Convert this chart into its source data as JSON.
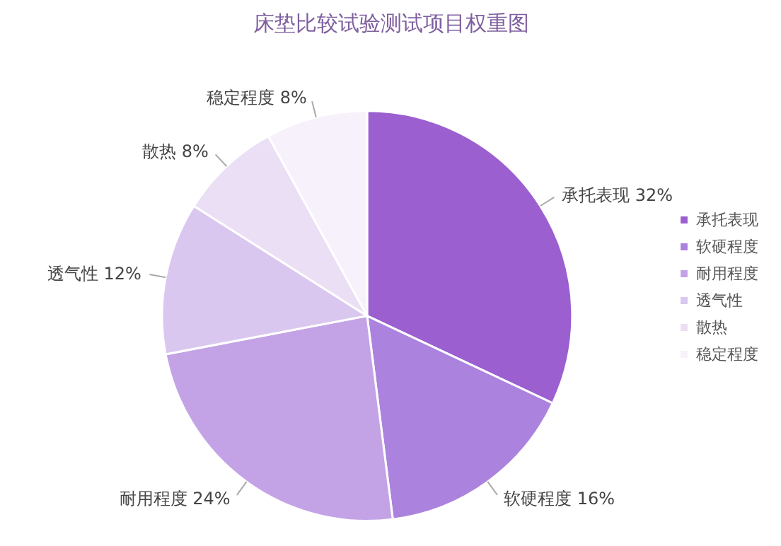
{
  "chart_data": {
    "type": "pie",
    "title": "床垫比较试验测试项目权重图",
    "categories": [
      "承托表现",
      "软硬程度",
      "耐用程度",
      "透气性",
      "散热",
      "稳定程度"
    ],
    "values": [
      32,
      16,
      24,
      12,
      8,
      8
    ],
    "value_labels": [
      "32%",
      "16%",
      "24%",
      "12%",
      "8%",
      "8%"
    ],
    "colors": [
      "#9b5fd0",
      "#ab82dd",
      "#c3a3e5",
      "#dac7ef",
      "#eadff5",
      "#f6f1fb"
    ],
    "legend": "right"
  }
}
